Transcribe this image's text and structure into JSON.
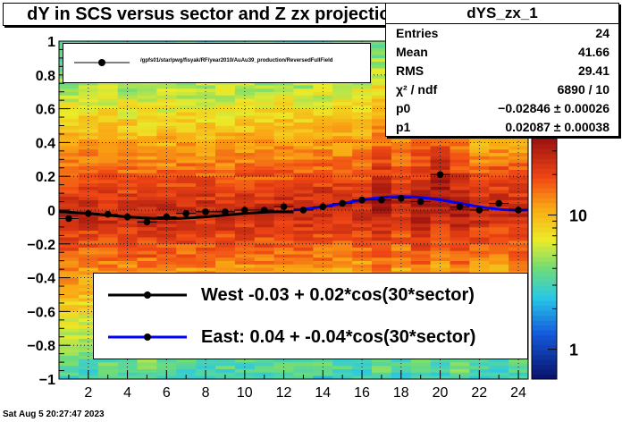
{
  "title": "dY in SCS versus sector and Z zx projection",
  "stats": {
    "name": "dYS_zx_1",
    "rows": [
      {
        "label": "Entries",
        "value": "24"
      },
      {
        "label": "Mean",
        "value": "41.66"
      },
      {
        "label": "RMS",
        "value": "29.41"
      },
      {
        "label": "χ² / ndf",
        "value": "6890 / 10"
      },
      {
        "label": "p0",
        "value": "−0.02846 ± 0.00026"
      },
      {
        "label": "p1",
        "value": "0.02087 ± 0.00038"
      }
    ]
  },
  "legend_top": {
    "label": "/gpfs01/star/pwg/fisyak/RF/year2010/AuAu39_production/ReversedFullField"
  },
  "legend_bottom": [
    {
      "label": "West -0.03 +  0.02*cos(30*sector)",
      "color": "#000000"
    },
    {
      "label": "East:  0.04 + -0.04*cos(30*sector)",
      "color": "#0000ff"
    }
  ],
  "footer": "Sat Aug  5 20:27:47 2023",
  "chart_data": {
    "type": "scatter",
    "title": "dY in SCS versus sector and Z zx projection",
    "xlabel": "",
    "ylabel": "",
    "xlim": [
      0.5,
      24.5
    ],
    "ylim": [
      -1,
      1
    ],
    "x_ticks": [
      2,
      4,
      6,
      8,
      10,
      12,
      14,
      16,
      18,
      20,
      22,
      24
    ],
    "y_ticks": [
      -1,
      -0.8,
      -0.6,
      -0.4,
      -0.2,
      0,
      0.2,
      0.4,
      0.6,
      0.8,
      1
    ],
    "y_tick_labels": [
      "−1",
      "−0.8",
      "−0.6",
      "−0.4",
      "−0.2",
      "0",
      "0.2",
      "0.4",
      "0.6",
      "0.8",
      "1"
    ],
    "colorbar": {
      "scale": "log",
      "tick_labels": [
        "1",
        "10"
      ],
      "tick_values": [
        1,
        10
      ],
      "range": [
        0.6,
        40
      ]
    },
    "series": [
      {
        "x": [
          1,
          2,
          3,
          4,
          5,
          6,
          7,
          8,
          9,
          10,
          11,
          12,
          13,
          14,
          15,
          16,
          17,
          18,
          19,
          20,
          21,
          22,
          23,
          24
        ],
        "values": [
          -0.05,
          -0.02,
          -0.025,
          -0.04,
          -0.07,
          -0.04,
          -0.02,
          -0.01,
          -0.01,
          0.0,
          0.0,
          0.02,
          0.0,
          0.02,
          0.04,
          0.06,
          0.06,
          0.07,
          0.05,
          0.21,
          0.02,
          0.0,
          0.04,
          0.0
        ]
      }
    ],
    "fits": [
      {
        "name": "West",
        "p0": -0.03,
        "p1": 0.02,
        "x_range": [
          0.5,
          12.5
        ],
        "color": "#000000"
      },
      {
        "name": "East",
        "p0": 0.04,
        "p1": -0.04,
        "x_range": [
          12.5,
          24.5
        ],
        "color": "#0000ff"
      }
    ],
    "grid": true
  }
}
